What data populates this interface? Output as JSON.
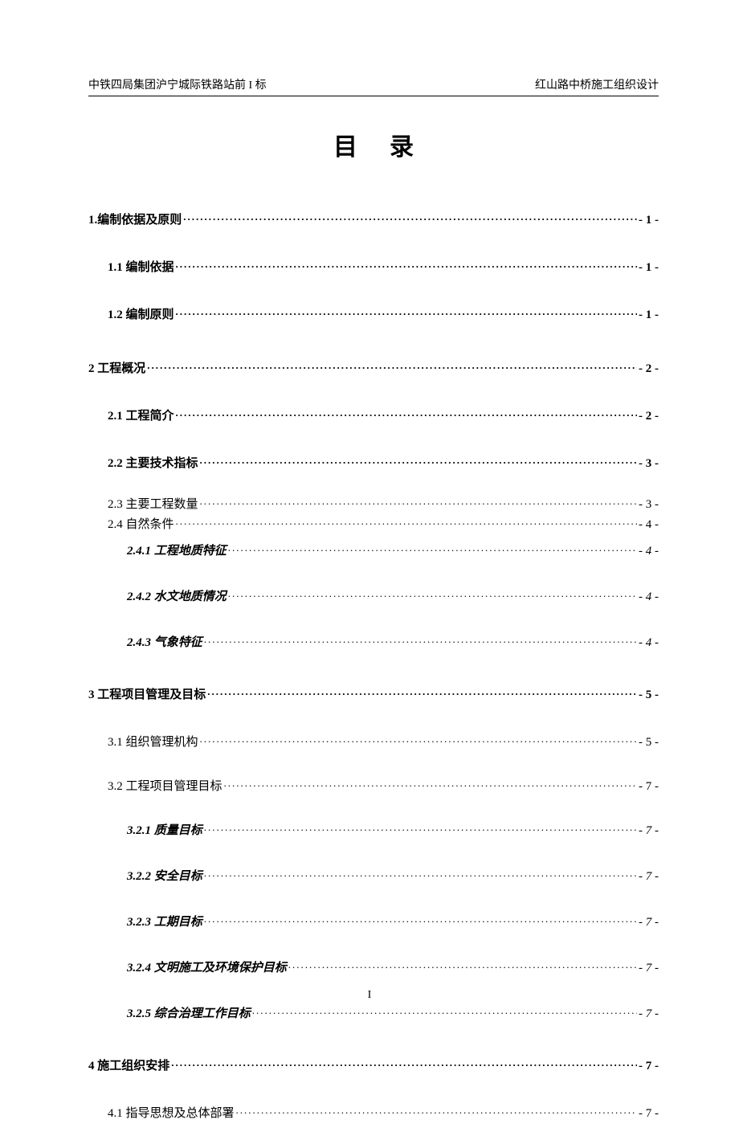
{
  "header_left": "中铁四局集团沪宁城际铁路站前 I 标",
  "header_right": "红山路中桥施工组织设计",
  "title": "目录",
  "footer": "I",
  "toc": [
    {
      "label": "1.编制依据及原则",
      "page": "- 1 -",
      "cls": "l1"
    },
    {
      "label": "1.1 编制依据",
      "page": "- 1 -",
      "cls": "l2"
    },
    {
      "label": "1.2 编制原则",
      "page": "- 1 -",
      "cls": "l2"
    },
    {
      "label": "2 工程概况",
      "page": "- 2 -",
      "cls": "l1"
    },
    {
      "label": "2.1 工程简介",
      "page": "- 2 -",
      "cls": "l2"
    },
    {
      "label": "2.2 主要技术指标",
      "page": "- 3 -",
      "cls": "l2"
    },
    {
      "label": "2.3 主要工程数量",
      "page": "- 3 -",
      "cls": "l2tight"
    },
    {
      "label": "2.4 自然条件",
      "page": "- 4 -",
      "cls": "l2tight"
    },
    {
      "label": "2.4.1 工程地质特征",
      "page": "- 4 -",
      "cls": "l3"
    },
    {
      "label": "2.4.2 水文地质情况",
      "page": "- 4 -",
      "cls": "l3"
    },
    {
      "label": "2.4.3 气象特征",
      "page": "- 4 -",
      "cls": "l3"
    },
    {
      "label": "3  工程项目管理及目标",
      "page": "- 5 -",
      "cls": "l1"
    },
    {
      "label": "3.1 组织管理机构",
      "page": "- 5 -",
      "cls": "l2n"
    },
    {
      "label": "3.2 工程项目管理目标",
      "page": "- 7 -",
      "cls": "l2n"
    },
    {
      "label": "3.2.1 质量目标",
      "page": "- 7 -",
      "cls": "l3"
    },
    {
      "label": "3.2.2 安全目标",
      "page": "- 7 -",
      "cls": "l3"
    },
    {
      "label": "3.2.3 工期目标",
      "page": "- 7 -",
      "cls": "l3"
    },
    {
      "label": "3.2.4 文明施工及环境保护目标",
      "page": "- 7 -",
      "cls": "l3"
    },
    {
      "label": "3.2.5 综合治理工作目标",
      "page": "- 7 -",
      "cls": "l3"
    },
    {
      "label": "4 施工组织安排",
      "page": "- 7 -",
      "cls": "l1"
    },
    {
      "label": "4.1 指导思想及总体部署",
      "page": "- 7 -",
      "cls": "l2n"
    }
  ]
}
